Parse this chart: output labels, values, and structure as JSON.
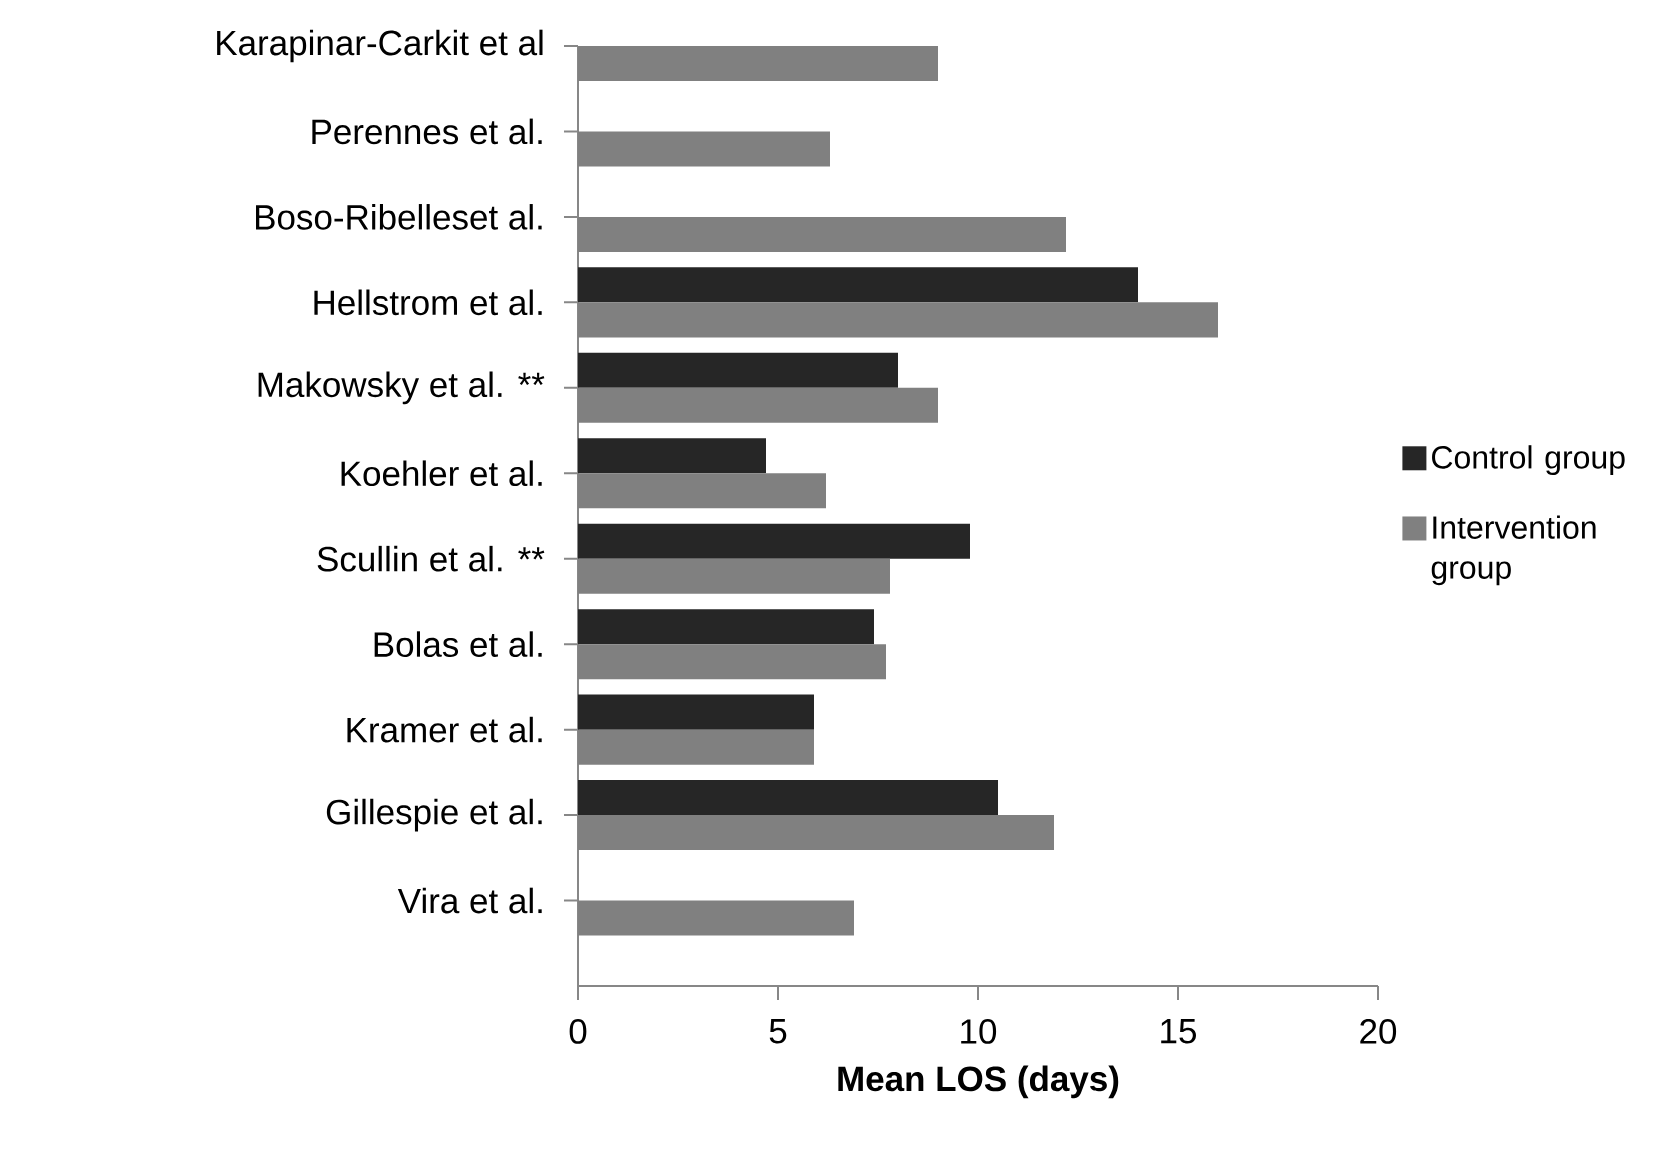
{
  "chart_data": {
    "type": "bar",
    "orientation": "horizontal",
    "xlabel": "Mean LOS (days)",
    "categories": [
      "Karapinar-Carkit et al",
      "Perennes et al.",
      "Boso-Ribelleset al.",
      "Hellstrom et al.",
      "Makowsky et al. **",
      "Koehler et al.",
      "Scullin et al. **",
      "Bolas et al.",
      "Kramer et al.",
      "Gillespie et al.",
      "Vira  et al."
    ],
    "series": [
      {
        "name": "Control group",
        "color": "#262626",
        "values": [
          null,
          null,
          null,
          14.0,
          8.0,
          4.7,
          9.8,
          7.4,
          5.9,
          10.5,
          null
        ]
      },
      {
        "name": "Intervention group",
        "color": "#808080",
        "values": [
          9.0,
          6.3,
          12.2,
          16.0,
          9.0,
          6.2,
          7.8,
          7.7,
          5.9,
          11.9,
          6.9
        ]
      }
    ],
    "xlim": [
      0,
      20
    ],
    "xticks": [
      0,
      5,
      10,
      15,
      20
    ],
    "legend": "right"
  }
}
